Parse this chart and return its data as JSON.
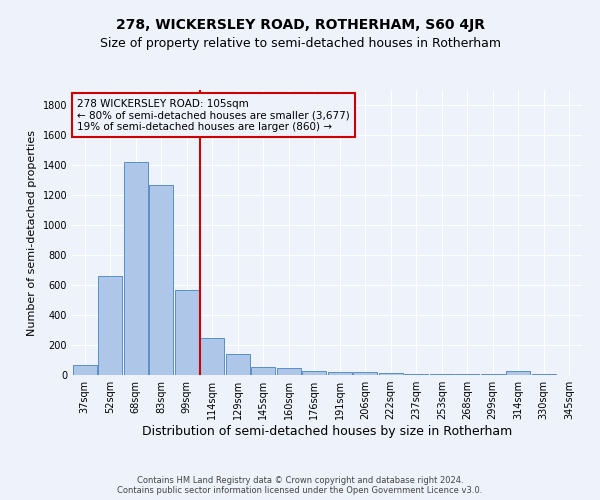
{
  "title": "278, WICKERSLEY ROAD, ROTHERHAM, S60 4JR",
  "subtitle": "Size of property relative to semi-detached houses in Rotherham",
  "xlabel": "Distribution of semi-detached houses by size in Rotherham",
  "ylabel": "Number of semi-detached properties",
  "categories": [
    "37sqm",
    "52sqm",
    "68sqm",
    "83sqm",
    "99sqm",
    "114sqm",
    "129sqm",
    "145sqm",
    "160sqm",
    "176sqm",
    "191sqm",
    "206sqm",
    "222sqm",
    "237sqm",
    "253sqm",
    "268sqm",
    "299sqm",
    "314sqm",
    "330sqm",
    "345sqm"
  ],
  "values": [
    65,
    660,
    1420,
    1270,
    570,
    245,
    140,
    55,
    50,
    30,
    20,
    20,
    15,
    10,
    10,
    10,
    5,
    30,
    5,
    2
  ],
  "bar_color": "#aec6e8",
  "bar_edge_color": "#5a8fc4",
  "property_line_color": "#cc0000",
  "property_line_bin": 5,
  "annotation_title": "278 WICKERSLEY ROAD: 105sqm",
  "annotation_line1": "← 80% of semi-detached houses are smaller (3,677)",
  "annotation_line2": "19% of semi-detached houses are larger (860) →",
  "annotation_box_color": "#cc0000",
  "ylim": [
    0,
    1900
  ],
  "yticks": [
    0,
    200,
    400,
    600,
    800,
    1000,
    1200,
    1400,
    1600,
    1800
  ],
  "footer_line1": "Contains HM Land Registry data © Crown copyright and database right 2024.",
  "footer_line2": "Contains public sector information licensed under the Open Government Licence v3.0.",
  "bg_color": "#eef2fb",
  "grid_color": "#ffffff",
  "title_fontsize": 10,
  "subtitle_fontsize": 9,
  "ylabel_fontsize": 8,
  "xlabel_fontsize": 9,
  "tick_fontsize": 7,
  "footer_fontsize": 6,
  "annotation_fontsize": 7.5
}
